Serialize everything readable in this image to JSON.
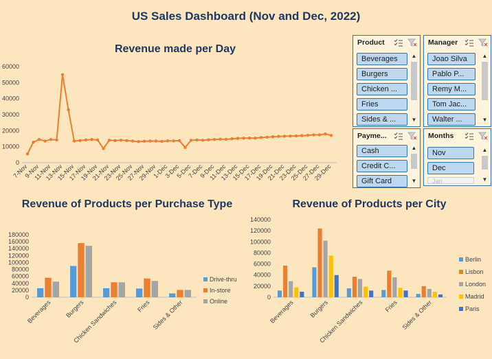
{
  "dashboard_title": "US Sales Dashboard (Nov and Dec, 2022)",
  "chart_data": [
    {
      "type": "line",
      "title": "Revenue made per Day",
      "x": [
        "7-Nov",
        "8-Nov",
        "9-Nov",
        "10-Nov",
        "11-Nov",
        "12-Nov",
        "13-Nov",
        "14-Nov",
        "15-Nov",
        "16-Nov",
        "17-Nov",
        "18-Nov",
        "19-Nov",
        "20-Nov",
        "21-Nov",
        "22-Nov",
        "23-Nov",
        "24-Nov",
        "25-Nov",
        "26-Nov",
        "27-Nov",
        "28-Nov",
        "29-Nov",
        "30-Nov",
        "1-Dec",
        "2-Dec",
        "3-Dec",
        "4-Dec",
        "5-Dec",
        "6-Dec",
        "7-Dec",
        "8-Dec",
        "9-Dec",
        "10-Dec",
        "11-Dec",
        "12-Dec",
        "13-Dec",
        "14-Dec",
        "15-Dec",
        "16-Dec",
        "17-Dec",
        "18-Dec",
        "19-Dec",
        "20-Dec",
        "21-Dec",
        "22-Dec",
        "23-Dec",
        "24-Dec",
        "25-Dec",
        "26-Dec",
        "27-Dec",
        "28-Dec",
        "29-Dec"
      ],
      "x_tick_labels": [
        "7-Nov",
        "9-Nov",
        "11-Nov",
        "13-Nov",
        "15-Nov",
        "17-Nov",
        "19-Nov",
        "21-Nov",
        "23-Nov",
        "25-Nov",
        "27-Nov",
        "29-Nov",
        "1-Dec",
        "3-Dec",
        "5-Dec",
        "7-Dec",
        "9-Dec",
        "11-Dec",
        "13-Dec",
        "15-Dec",
        "17-Dec",
        "19-Dec",
        "21-Dec",
        "23-Dec",
        "25-Dec",
        "27-Dec",
        "29-Dec"
      ],
      "values": [
        5500,
        12800,
        14500,
        13500,
        14500,
        14200,
        55000,
        33000,
        13500,
        13800,
        14200,
        14500,
        14200,
        8800,
        14000,
        13800,
        14000,
        13800,
        13500,
        13200,
        13400,
        13500,
        13500,
        13300,
        13600,
        13600,
        13800,
        9500,
        14000,
        14200,
        14000,
        14300,
        14500,
        14700,
        14600,
        14900,
        15200,
        15300,
        15400,
        15300,
        15700,
        15900,
        16200,
        16400,
        16500,
        16600,
        16700,
        16900,
        17100,
        17400,
        17400,
        17900,
        17000
      ],
      "yticks": [
        "0",
        "10000",
        "20000",
        "30000",
        "40000",
        "50000",
        "60000"
      ],
      "ylim": [
        0,
        60000
      ],
      "color": "#ed7d31"
    },
    {
      "type": "bar",
      "title": "Revenue of Products per Purchase Type",
      "categories": [
        "Beverages",
        "Burgers",
        "Chicken Sandwiches",
        "Fries",
        "Sides & Other"
      ],
      "series": [
        {
          "name": "Drive-thru",
          "color": "#5b9bd5",
          "values": [
            26000,
            90000,
            26000,
            25000,
            11000
          ]
        },
        {
          "name": "In-store",
          "color": "#ed7d31",
          "values": [
            56000,
            156000,
            43000,
            54000,
            21000
          ]
        },
        {
          "name": "Online",
          "color": "#a5a5a5",
          "values": [
            45000,
            148000,
            43000,
            47000,
            21000
          ]
        }
      ],
      "yticks": [
        "0",
        "20000",
        "40000",
        "60000",
        "80000",
        "100000",
        "120000",
        "140000",
        "160000",
        "180000"
      ],
      "ylim": [
        0,
        180000
      ]
    },
    {
      "type": "bar",
      "title": "Revenue of Products per City",
      "categories": [
        "Beverages",
        "Burgers",
        "Chicken Sandwiches",
        "Fries",
        "Sides & Other"
      ],
      "series": [
        {
          "name": "Berlin",
          "color": "#5b9bd5",
          "values": [
            12000,
            54000,
            16000,
            13000,
            6000
          ]
        },
        {
          "name": "Lisbon",
          "color": "#ed7d31",
          "values": [
            57000,
            124000,
            37000,
            48000,
            20000
          ]
        },
        {
          "name": "London",
          "color": "#a5a5a5",
          "values": [
            29000,
            102000,
            33000,
            36000,
            15000
          ]
        },
        {
          "name": "Madrid",
          "color": "#ffc000",
          "values": [
            18000,
            75000,
            19000,
            17000,
            10000
          ]
        },
        {
          "name": "Paris",
          "color": "#4472c4",
          "values": [
            10000,
            40000,
            12000,
            12000,
            5000
          ]
        }
      ],
      "yticks": [
        "0",
        "20000",
        "40000",
        "60000",
        "80000",
        "100000",
        "120000",
        "140000"
      ],
      "ylim": [
        0,
        140000
      ]
    }
  ],
  "slicers": {
    "product": {
      "title": "Product",
      "items": [
        "Beverages",
        "Burgers",
        "Chicken ...",
        "Fries",
        "Sides & ..."
      ]
    },
    "manager": {
      "title": "Manager",
      "items": [
        "Joao Silva",
        "Pablo P...",
        "Remy M...",
        "Tom Jac...",
        "Walter ..."
      ]
    },
    "payment": {
      "title": "Payme...",
      "items": [
        "Cash",
        "Credit C...",
        "Gift Card"
      ]
    },
    "months": {
      "title": "Months",
      "items": [
        "Nov",
        "Dec",
        "Jan"
      ],
      "disabled": [
        false,
        false,
        true
      ]
    }
  },
  "icons": {
    "multiselect": "multi-select-icon",
    "clear": "clear-filter-icon"
  }
}
